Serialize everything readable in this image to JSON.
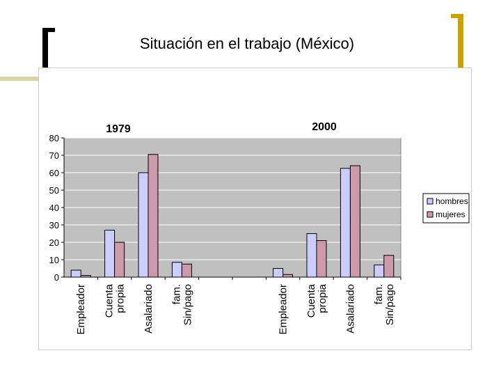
{
  "slide": {
    "title": "Situación en el trabajo (México)"
  },
  "chart_data": {
    "type": "bar",
    "panels": [
      {
        "title": "1979",
        "categories": [
          "Empleador",
          "Cuenta propia",
          "Asalariado",
          "fam. Sin/pago",
          ""
        ],
        "series": [
          {
            "name": "hombres",
            "values": [
              4,
              27,
              60,
              8.5,
              null
            ]
          },
          {
            "name": "mujeres",
            "values": [
              1,
              20,
              70.5,
              7.5,
              null
            ]
          }
        ]
      },
      {
        "title": "2000",
        "categories": [
          "",
          "Empleador",
          "Cuenta propia",
          "Asalariado",
          "fam. Sin/pago"
        ],
        "series": [
          {
            "name": "hombres",
            "values": [
              null,
              5,
              25,
              62.5,
              7
            ]
          },
          {
            "name": "mujeres",
            "values": [
              null,
              1.5,
              21,
              64,
              12.5
            ]
          }
        ]
      }
    ],
    "category_lines": [
      [
        "Empleador"
      ],
      [
        "Cuenta",
        "propia"
      ],
      [
        "Asalariado"
      ],
      [
        "fam.",
        "Sin/pago"
      ],
      [
        ""
      ],
      [
        ""
      ],
      [
        "Empleador"
      ],
      [
        "Cuenta",
        "propia"
      ],
      [
        "Asalariado"
      ],
      [
        "fam.",
        "Sin/pago"
      ]
    ],
    "yticks": [
      "0",
      "10",
      "20",
      "30",
      "40",
      "50",
      "60",
      "70",
      "80"
    ],
    "ylim": [
      0,
      80
    ],
    "legend": {
      "position": "right",
      "items": [
        "hombres",
        "mujeres"
      ]
    },
    "colors": {
      "hombres": "#ccccff",
      "mujeres": "#cc99aa",
      "plot_bg": "#c0c0c0",
      "grid": "#ffffff"
    },
    "grid": true
  }
}
